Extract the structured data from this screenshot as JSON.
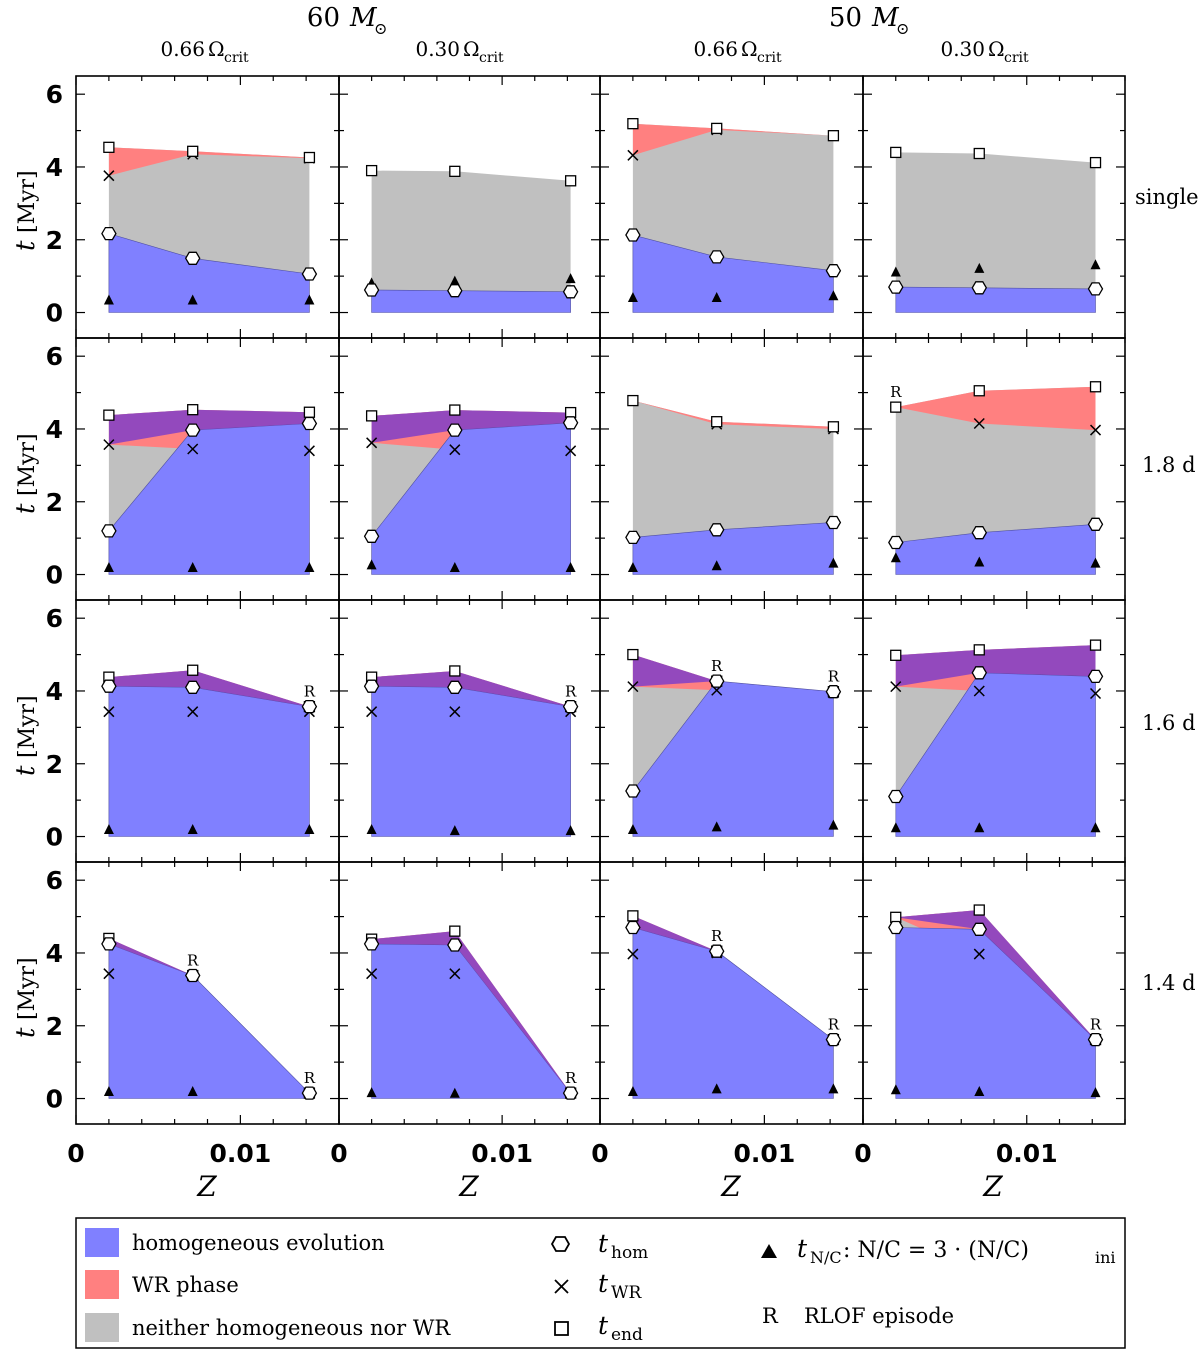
{
  "figure": {
    "column_groups": [
      {
        "mass_value": "60",
        "mass_symbol": "M",
        "mass_sub": "⊙"
      },
      {
        "mass_value": "50",
        "mass_symbol": "M",
        "mass_sub": "⊙"
      }
    ],
    "column_headers": [
      {
        "value": "0.66",
        "symbol": "Ω",
        "sub": "crit"
      },
      {
        "value": "0.30",
        "symbol": "Ω",
        "sub": "crit"
      },
      {
        "value": "0.66",
        "symbol": "Ω",
        "sub": "crit"
      },
      {
        "value": "0.30",
        "symbol": "Ω",
        "sub": "crit"
      }
    ],
    "row_labels": [
      "single",
      "1.8 d",
      "1.6 d",
      "1.4 d"
    ],
    "ylabel": {
      "var": "t",
      "unit": "[Myr]"
    },
    "xlabel": "Z",
    "x_ticks": [
      "0",
      "0.01"
    ],
    "y_ticks": [
      "0",
      "2",
      "4",
      "6"
    ]
  },
  "colors": {
    "hom": "#8080ff",
    "wr": "#ff8080",
    "neither": "#c0c0c0",
    "overlap": "#8040c8",
    "frame": "#000000"
  },
  "legend": {
    "hom": "homogeneous evolution",
    "wr": "WR phase",
    "neither": "neither homogeneous nor WR",
    "thom": {
      "var": "t",
      "sub": "hom"
    },
    "twr": {
      "var": "t",
      "sub": "WR"
    },
    "tend": {
      "var": "t",
      "sub": "end"
    },
    "tnc": {
      "var": "t",
      "sub": "N/C",
      "text": ": N/C = 3 · (N/C)",
      "sub2": "ini"
    },
    "rlof": {
      "mark": "R",
      "text": "RLOF episode"
    }
  },
  "chart_data": {
    "type": "area",
    "xlim": [
      0,
      0.016
    ],
    "ylim": [
      -0.7,
      6.5
    ],
    "x_values": [
      0.002,
      0.0071,
      0.0142
    ],
    "panels": [
      [
        {
          "row": "single",
          "col": "60 M☉ 0.66 Ωcrit",
          "hom": [
            2.17,
            1.49,
            1.06
          ],
          "wr": [
            3.76,
            4.35,
            4.24
          ],
          "end": [
            4.54,
            4.43,
            4.26
          ],
          "nc": [
            0.33,
            0.33,
            0.33
          ],
          "rlof": [
            false,
            false,
            false
          ]
        },
        {
          "row": "single",
          "col": "60 M☉ 0.30 Ωcrit",
          "hom": [
            0.62,
            0.6,
            0.57
          ],
          "wr": [
            null,
            null,
            null
          ],
          "end": [
            3.9,
            3.88,
            3.62
          ],
          "nc": [
            0.8,
            0.85,
            0.92
          ],
          "rlof": [
            false,
            false,
            false
          ]
        },
        {
          "row": "single",
          "col": "50 M☉ 0.66 Ωcrit",
          "hom": [
            2.13,
            1.53,
            1.15
          ],
          "wr": [
            4.32,
            5.02,
            null
          ],
          "end": [
            5.19,
            5.06,
            4.86
          ],
          "nc": [
            0.4,
            0.4,
            0.45
          ],
          "rlof": [
            false,
            false,
            false
          ]
        },
        {
          "row": "single",
          "col": "50 M☉ 0.30 Ωcrit",
          "hom": [
            0.7,
            0.68,
            0.65
          ],
          "wr": [
            null,
            null,
            null
          ],
          "end": [
            4.4,
            4.37,
            4.12
          ],
          "nc": [
            1.1,
            1.2,
            1.3
          ],
          "rlof": [
            false,
            false,
            false
          ]
        }
      ],
      [
        {
          "row": "1.8 d",
          "col": "60 M☉ 0.66 Ωcrit",
          "hom": [
            1.2,
            3.97,
            4.15
          ],
          "wr": [
            3.57,
            3.45,
            3.4
          ],
          "end": [
            4.38,
            4.53,
            4.46
          ],
          "nc": [
            0.18,
            0.18,
            0.18
          ],
          "rlof": [
            false,
            false,
            false
          ]
        },
        {
          "row": "1.8 d",
          "col": "60 M☉ 0.30 Ωcrit",
          "hom": [
            1.05,
            3.97,
            4.17
          ],
          "wr": [
            3.62,
            3.43,
            3.4
          ],
          "end": [
            4.36,
            4.52,
            4.45
          ],
          "nc": [
            0.25,
            0.18,
            0.18
          ],
          "rlof": [
            false,
            false,
            false
          ]
        },
        {
          "row": "1.8 d",
          "col": "50 M☉ 0.66 Ωcrit",
          "hom": [
            1.02,
            1.23,
            1.43
          ],
          "wr": [
            null,
            4.13,
            4.0
          ],
          "end": [
            4.78,
            4.2,
            4.06
          ],
          "nc": [
            0.18,
            0.23,
            0.3
          ],
          "rlof": [
            false,
            false,
            false
          ]
        },
        {
          "row": "1.8 d",
          "col": "50 M☉ 0.30 Ωcrit",
          "hom": [
            0.88,
            1.15,
            1.38
          ],
          "wr": [
            4.6,
            4.15,
            3.97
          ],
          "end": [
            4.6,
            5.05,
            5.16
          ],
          "nc": [
            0.45,
            0.33,
            0.3
          ],
          "rlof": [
            true,
            false,
            false
          ]
        }
      ],
      [
        {
          "row": "1.6 d",
          "col": "60 M☉ 0.66 Ωcrit",
          "hom": [
            4.13,
            4.1,
            3.57
          ],
          "wr": [
            3.43,
            3.43,
            3.43
          ],
          "end": [
            4.38,
            4.57,
            3.57
          ],
          "nc": [
            0.18,
            0.18,
            0.18
          ],
          "rlof": [
            false,
            false,
            true
          ]
        },
        {
          "row": "1.6 d",
          "col": "60 M☉ 0.30 Ωcrit",
          "hom": [
            4.13,
            4.1,
            3.57
          ],
          "wr": [
            3.43,
            3.43,
            3.43
          ],
          "end": [
            4.38,
            4.55,
            3.57
          ],
          "nc": [
            0.18,
            0.15,
            0.15
          ],
          "rlof": [
            false,
            false,
            true
          ]
        },
        {
          "row": "1.6 d",
          "col": "50 M☉ 0.66 Ωcrit",
          "hom": [
            1.25,
            4.27,
            3.98
          ],
          "wr": [
            4.12,
            4.02,
            3.95
          ],
          "end": [
            5.0,
            4.27,
            3.98
          ],
          "nc": [
            0.18,
            0.25,
            0.3
          ],
          "rlof": [
            false,
            true,
            true
          ]
        },
        {
          "row": "1.6 d",
          "col": "50 M☉ 0.30 Ωcrit",
          "hom": [
            1.1,
            4.5,
            4.4
          ],
          "wr": [
            4.12,
            4.0,
            3.93
          ],
          "end": [
            4.98,
            5.13,
            5.26
          ],
          "nc": [
            0.23,
            0.23,
            0.23
          ],
          "rlof": [
            false,
            false,
            false
          ]
        }
      ],
      [
        {
          "row": "1.4 d",
          "col": "60 M☉ 0.66 Ωcrit",
          "hom": [
            4.25,
            3.38,
            0.15
          ],
          "wr": [
            3.43,
            null,
            null
          ],
          "end": [
            4.4,
            3.38,
            0.15
          ],
          "nc": [
            0.18,
            0.18,
            0.15
          ],
          "rlof": [
            false,
            true,
            true
          ]
        },
        {
          "row": "1.4 d",
          "col": "60 M☉ 0.30 Ωcrit",
          "hom": [
            4.25,
            4.22,
            0.15
          ],
          "wr": [
            3.43,
            3.43,
            null
          ],
          "end": [
            4.38,
            4.6,
            0.15
          ],
          "nc": [
            0.15,
            0.13,
            0.13
          ],
          "rlof": [
            false,
            false,
            true
          ]
        },
        {
          "row": "1.4 d",
          "col": "50 M☉ 0.66 Ωcrit",
          "hom": [
            4.7,
            4.05,
            1.62
          ],
          "wr": [
            3.97,
            4.0,
            null
          ],
          "end": [
            5.02,
            4.05,
            1.62
          ],
          "nc": [
            0.18,
            0.25,
            0.25
          ],
          "rlof": [
            false,
            true,
            true
          ]
        },
        {
          "row": "1.4 d",
          "col": "50 M☉ 0.30 Ωcrit",
          "hom": [
            4.7,
            4.65,
            1.62
          ],
          "wr": [
            null,
            3.97,
            null
          ],
          "end": [
            4.98,
            5.18,
            1.62
          ],
          "nc": [
            0.23,
            0.18,
            0.15
          ],
          "rlof": [
            false,
            false,
            true
          ]
        }
      ]
    ]
  }
}
